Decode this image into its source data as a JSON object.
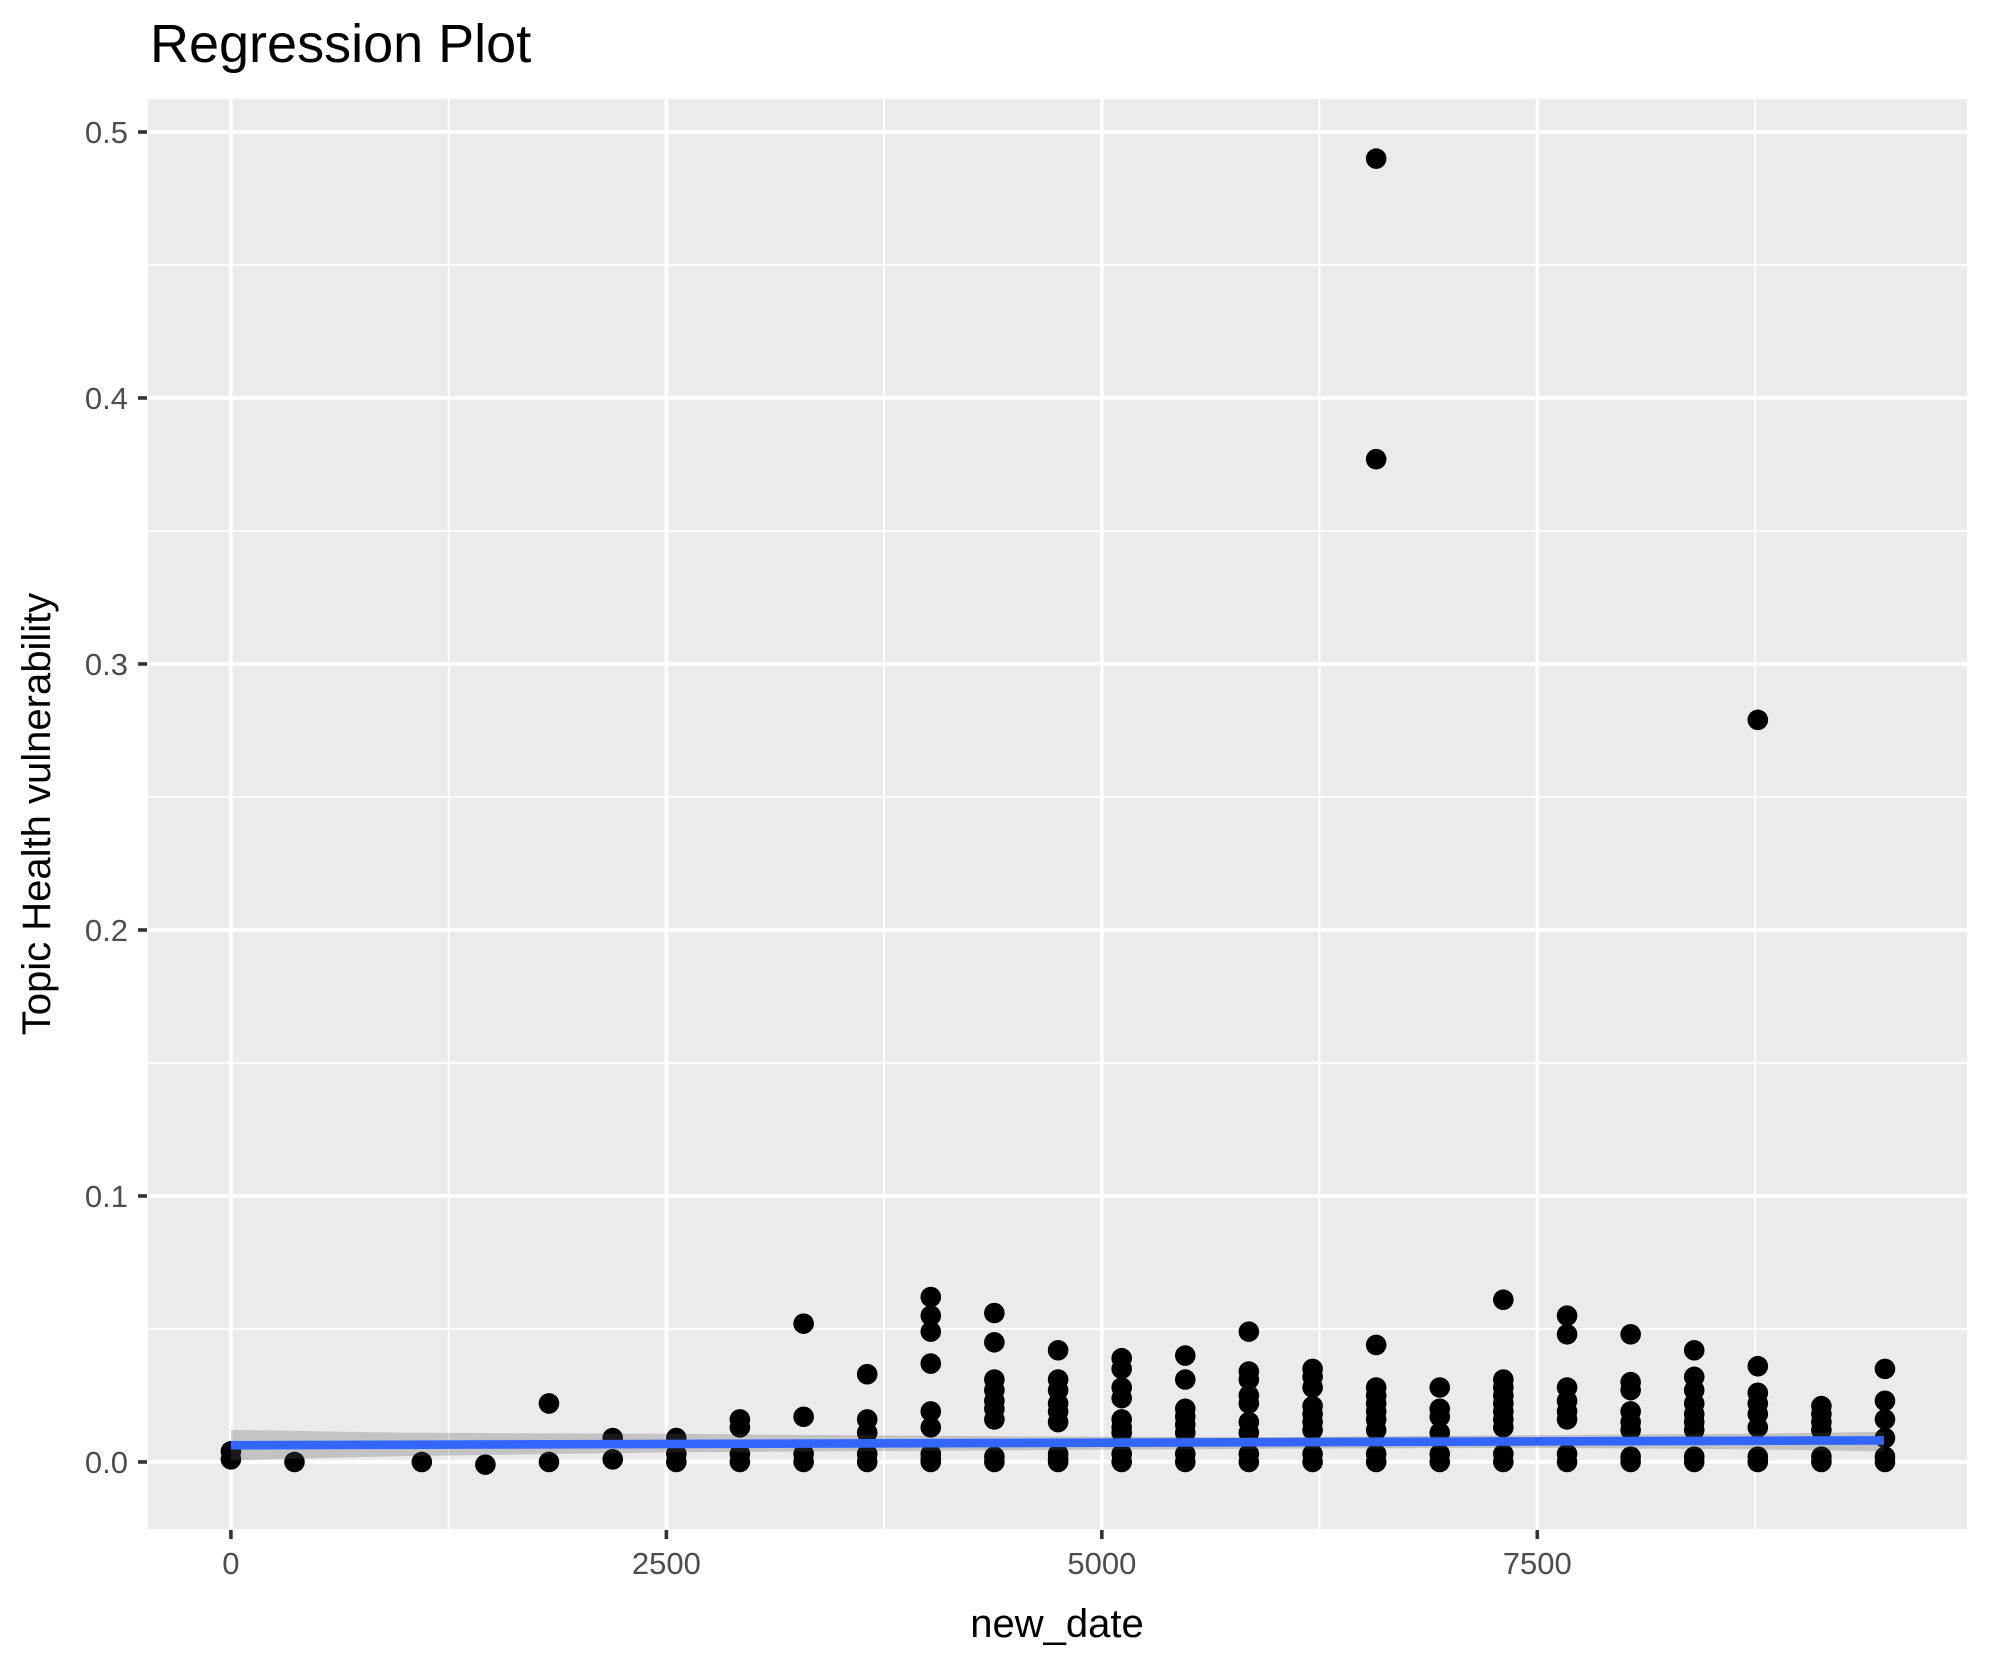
{
  "page": {
    "background": "#ffffff"
  },
  "chart_data": {
    "type": "scatter",
    "title": "Regression Plot",
    "xlabel": "new_date",
    "ylabel": "Topic Health vulnerability",
    "legend": "none",
    "grid": "on",
    "panel_background": "#EBEBEB",
    "grid_color": "#FFFFFF",
    "point_color": "#000000",
    "tick_label_color": "#4D4D4D",
    "tick_mark_color": "#333333",
    "title_color": "#000000",
    "axis_title_color": "#000000",
    "trend_color": "#3366FF",
    "ribbon_color": "rgba(90,90,90,0.27)",
    "xlim": [
      -476,
      9967
    ],
    "ylim": [
      -0.0252,
      0.5124
    ],
    "x_ticks": [
      {
        "v": 0,
        "label": "0"
      },
      {
        "v": 2500,
        "label": "2500"
      },
      {
        "v": 5000,
        "label": "5000"
      },
      {
        "v": 7500,
        "label": "7500"
      }
    ],
    "y_ticks": [
      {
        "v": 0.0,
        "label": "0.0"
      },
      {
        "v": 0.1,
        "label": "0.1"
      },
      {
        "v": 0.2,
        "label": "0.2"
      },
      {
        "v": 0.3,
        "label": "0.3"
      },
      {
        "v": 0.4,
        "label": "0.4"
      },
      {
        "v": 0.5,
        "label": "0.5"
      }
    ],
    "x_minor": [
      1250,
      3750,
      6250,
      8750
    ],
    "y_minor": [
      0.05,
      0.15,
      0.25,
      0.35,
      0.45
    ],
    "points": [
      [
        0,
        0.004
      ],
      [
        0,
        0.001
      ],
      [
        365,
        0.0
      ],
      [
        1096,
        0.0
      ],
      [
        1461,
        -0.001
      ],
      [
        1826,
        0.022
      ],
      [
        1826,
        0.0
      ],
      [
        2192,
        0.009
      ],
      [
        2192,
        0.001
      ],
      [
        2557,
        0.009
      ],
      [
        2557,
        0.003
      ],
      [
        2557,
        0.0
      ],
      [
        2922,
        0.016
      ],
      [
        2922,
        0.013
      ],
      [
        2922,
        0.003
      ],
      [
        2922,
        0.0
      ],
      [
        3288,
        0.052
      ],
      [
        3288,
        0.017
      ],
      [
        3288,
        0.003
      ],
      [
        3288,
        0.0
      ],
      [
        3653,
        0.033
      ],
      [
        3653,
        0.016
      ],
      [
        3653,
        0.011
      ],
      [
        3653,
        0.003
      ],
      [
        3653,
        0.0
      ],
      [
        4018,
        0.062
      ],
      [
        4018,
        0.055
      ],
      [
        4018,
        0.049
      ],
      [
        4018,
        0.037
      ],
      [
        4018,
        0.019
      ],
      [
        4018,
        0.013
      ],
      [
        4018,
        0.003
      ],
      [
        4018,
        0.001
      ],
      [
        4018,
        0.0
      ],
      [
        4383,
        0.056
      ],
      [
        4383,
        0.045
      ],
      [
        4383,
        0.031
      ],
      [
        4383,
        0.027
      ],
      [
        4383,
        0.023
      ],
      [
        4383,
        0.02
      ],
      [
        4383,
        0.016
      ],
      [
        4383,
        0.002
      ],
      [
        4383,
        0.0
      ],
      [
        4749,
        0.042
      ],
      [
        4749,
        0.031
      ],
      [
        4749,
        0.027
      ],
      [
        4749,
        0.022
      ],
      [
        4749,
        0.019
      ],
      [
        4749,
        0.015
      ],
      [
        4749,
        0.003
      ],
      [
        4749,
        0.001
      ],
      [
        4749,
        0.0
      ],
      [
        5114,
        0.039
      ],
      [
        5114,
        0.035
      ],
      [
        5114,
        0.028
      ],
      [
        5114,
        0.024
      ],
      [
        5114,
        0.016
      ],
      [
        5114,
        0.013
      ],
      [
        5114,
        0.011
      ],
      [
        5114,
        0.003
      ],
      [
        5114,
        0.0
      ],
      [
        5479,
        0.04
      ],
      [
        5479,
        0.031
      ],
      [
        5479,
        0.02
      ],
      [
        5479,
        0.017
      ],
      [
        5479,
        0.014
      ],
      [
        5479,
        0.011
      ],
      [
        5479,
        0.003
      ],
      [
        5479,
        0.0
      ],
      [
        5844,
        0.049
      ],
      [
        5844,
        0.034
      ],
      [
        5844,
        0.031
      ],
      [
        5844,
        0.025
      ],
      [
        5844,
        0.022
      ],
      [
        5844,
        0.015
      ],
      [
        5844,
        0.011
      ],
      [
        5844,
        0.003
      ],
      [
        5844,
        0.0
      ],
      [
        6210,
        0.035
      ],
      [
        6210,
        0.032
      ],
      [
        6210,
        0.028
      ],
      [
        6210,
        0.021
      ],
      [
        6210,
        0.018
      ],
      [
        6210,
        0.015
      ],
      [
        6210,
        0.012
      ],
      [
        6210,
        0.003
      ],
      [
        6210,
        0.0
      ],
      [
        6575,
        0.49
      ],
      [
        6575,
        0.377
      ],
      [
        6575,
        0.044
      ],
      [
        6575,
        0.028
      ],
      [
        6575,
        0.025
      ],
      [
        6575,
        0.022
      ],
      [
        6575,
        0.019
      ],
      [
        6575,
        0.016
      ],
      [
        6575,
        0.012
      ],
      [
        6575,
        0.003
      ],
      [
        6575,
        0.0
      ],
      [
        6940,
        0.028
      ],
      [
        6940,
        0.02
      ],
      [
        6940,
        0.017
      ],
      [
        6940,
        0.011
      ],
      [
        6940,
        0.003
      ],
      [
        6940,
        0.0
      ],
      [
        7305,
        0.061
      ],
      [
        7305,
        0.031
      ],
      [
        7305,
        0.028
      ],
      [
        7305,
        0.025
      ],
      [
        7305,
        0.022
      ],
      [
        7305,
        0.019
      ],
      [
        7305,
        0.016
      ],
      [
        7305,
        0.013
      ],
      [
        7305,
        0.003
      ],
      [
        7305,
        0.0
      ],
      [
        7671,
        0.055
      ],
      [
        7671,
        0.048
      ],
      [
        7671,
        0.028
      ],
      [
        7671,
        0.023
      ],
      [
        7671,
        0.019
      ],
      [
        7671,
        0.016
      ],
      [
        7671,
        0.003
      ],
      [
        7671,
        0.0
      ],
      [
        8036,
        0.048
      ],
      [
        8036,
        0.03
      ],
      [
        8036,
        0.027
      ],
      [
        8036,
        0.019
      ],
      [
        8036,
        0.015
      ],
      [
        8036,
        0.012
      ],
      [
        8036,
        0.002
      ],
      [
        8036,
        0.0
      ],
      [
        8401,
        0.042
      ],
      [
        8401,
        0.032
      ],
      [
        8401,
        0.027
      ],
      [
        8401,
        0.022
      ],
      [
        8401,
        0.018
      ],
      [
        8401,
        0.015
      ],
      [
        8401,
        0.012
      ],
      [
        8401,
        0.002
      ],
      [
        8401,
        0.0
      ],
      [
        8766,
        0.279
      ],
      [
        8766,
        0.036
      ],
      [
        8766,
        0.026
      ],
      [
        8766,
        0.022
      ],
      [
        8766,
        0.018
      ],
      [
        8766,
        0.013
      ],
      [
        8766,
        0.002
      ],
      [
        8766,
        0.0
      ],
      [
        9131,
        0.021
      ],
      [
        9131,
        0.018
      ],
      [
        9131,
        0.015
      ],
      [
        9131,
        0.012
      ],
      [
        9131,
        0.002
      ],
      [
        9131,
        0.0
      ],
      [
        9496,
        0.035
      ],
      [
        9496,
        0.023
      ],
      [
        9496,
        0.016
      ],
      [
        9496,
        0.009
      ],
      [
        9496,
        0.002
      ],
      [
        9496,
        0.0
      ]
    ],
    "trend": {
      "type": "linear",
      "points": [
        [
          0,
          0.0063
        ],
        [
          9490,
          0.0081
        ]
      ]
    },
    "ribbon": {
      "upper": [
        [
          0,
          0.0121
        ],
        [
          1000,
          0.011
        ],
        [
          2500,
          0.0106
        ],
        [
          4500,
          0.0096
        ],
        [
          6000,
          0.0094
        ],
        [
          7500,
          0.0101
        ],
        [
          8700,
          0.0106
        ],
        [
          9490,
          0.0113
        ]
      ],
      "lower": [
        [
          0,
          0.0006
        ],
        [
          1000,
          0.0022
        ],
        [
          2500,
          0.0036
        ],
        [
          4500,
          0.0044
        ],
        [
          6000,
          0.005
        ],
        [
          7500,
          0.0053
        ],
        [
          8700,
          0.0048
        ],
        [
          9490,
          0.004
        ]
      ]
    }
  }
}
